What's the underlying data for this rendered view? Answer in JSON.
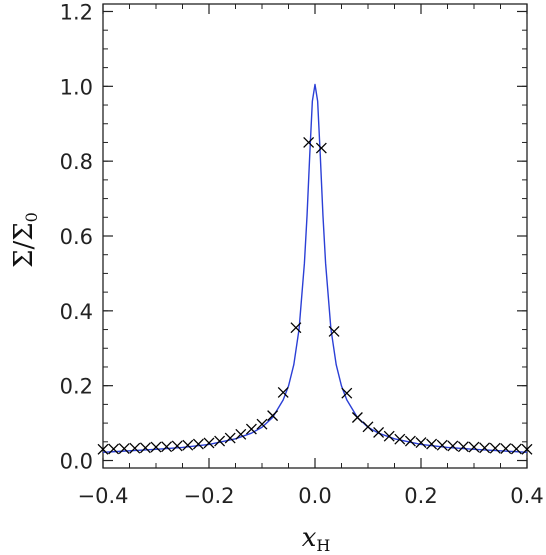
{
  "chart_data": {
    "type": "line",
    "xlabel": {
      "main": "x",
      "sub": "H"
    },
    "ylabel": {
      "main": "Σ/Σ",
      "sub": "0"
    },
    "xlim": [
      -0.4,
      0.4
    ],
    "ylim": [
      -0.02,
      1.22
    ],
    "x_ticks": [
      -0.4,
      -0.2,
      0.0,
      0.2,
      0.4
    ],
    "x_tick_labels": [
      "−0.4",
      "−0.2",
      "0.0",
      "0.2",
      "0.4"
    ],
    "y_ticks": [
      0.0,
      0.2,
      0.4,
      0.6,
      0.8,
      1.0,
      1.2
    ],
    "y_tick_labels": [
      "0.0",
      "0.2",
      "0.4",
      "0.6",
      "0.8",
      "1.0",
      "1.2"
    ],
    "grid": false,
    "series": [
      {
        "style": "line",
        "color": "#2b3fd6",
        "x": [
          -0.4,
          -0.35,
          -0.3,
          -0.25,
          -0.2,
          -0.15,
          -0.12,
          -0.1,
          -0.08,
          -0.06,
          -0.05,
          -0.04,
          -0.03,
          -0.02,
          -0.015,
          -0.01,
          -0.005,
          0.0,
          0.005,
          0.01,
          0.015,
          0.02,
          0.03,
          0.04,
          0.05,
          0.06,
          0.08,
          0.1,
          0.12,
          0.15,
          0.2,
          0.25,
          0.3,
          0.35,
          0.4
        ],
        "y": [
          0.022,
          0.026,
          0.03,
          0.035,
          0.043,
          0.058,
          0.073,
          0.089,
          0.115,
          0.162,
          0.199,
          0.256,
          0.352,
          0.527,
          0.655,
          0.814,
          0.96,
          1.005,
          0.96,
          0.814,
          0.655,
          0.527,
          0.352,
          0.256,
          0.199,
          0.162,
          0.115,
          0.089,
          0.073,
          0.058,
          0.043,
          0.035,
          0.03,
          0.026,
          0.022
        ]
      },
      {
        "style": "markers",
        "marker": "x",
        "color": "#000000",
        "x": [
          -0.4,
          -0.38,
          -0.36,
          -0.34,
          -0.32,
          -0.3,
          -0.28,
          -0.26,
          -0.24,
          -0.22,
          -0.2,
          -0.18,
          -0.16,
          -0.14,
          -0.12,
          -0.1,
          -0.08,
          -0.06,
          -0.036,
          -0.012,
          0.012,
          0.036,
          0.06,
          0.08,
          0.1,
          0.12,
          0.14,
          0.16,
          0.18,
          0.2,
          0.22,
          0.24,
          0.26,
          0.28,
          0.3,
          0.32,
          0.34,
          0.36,
          0.38,
          0.4
        ],
        "y": [
          0.03,
          0.031,
          0.032,
          0.033,
          0.034,
          0.036,
          0.037,
          0.039,
          0.041,
          0.044,
          0.047,
          0.052,
          0.06,
          0.07,
          0.084,
          0.097,
          0.12,
          0.182,
          0.355,
          0.85,
          0.835,
          0.345,
          0.18,
          0.115,
          0.09,
          0.075,
          0.065,
          0.057,
          0.052,
          0.048,
          0.044,
          0.041,
          0.039,
          0.037,
          0.036,
          0.034,
          0.033,
          0.032,
          0.031,
          0.03
        ]
      }
    ]
  }
}
